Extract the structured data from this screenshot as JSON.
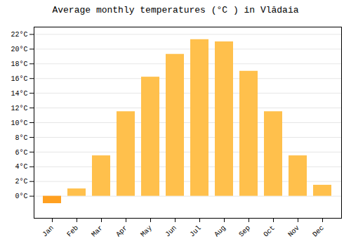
{
  "chart_data": {
    "type": "bar",
    "title": "Average monthly temperatures (°C ) in Vlădaia",
    "categories": [
      "Jan",
      "Feb",
      "Mar",
      "Apr",
      "May",
      "Jun",
      "Jul",
      "Aug",
      "Sep",
      "Oct",
      "Nov",
      "Dec"
    ],
    "values": [
      -1.0,
      1.0,
      5.5,
      11.5,
      16.2,
      19.3,
      21.3,
      21.0,
      17.0,
      11.5,
      5.5,
      1.5
    ],
    "colors": [
      "#FFA020",
      "#FFC04C",
      "#FFC04C",
      "#FFC04C",
      "#FFC04C",
      "#FFC04C",
      "#FFC04C",
      "#FFC04C",
      "#FFC04C",
      "#FFC04C",
      "#FFC04C",
      "#FFC04C"
    ],
    "ylim": [
      -3,
      23
    ],
    "yticks": [
      {
        "value": 0,
        "label": "0°C"
      },
      {
        "value": 2,
        "label": "2°C"
      },
      {
        "value": 4,
        "label": "4°C"
      },
      {
        "value": 6,
        "label": "6°C"
      },
      {
        "value": 8,
        "label": "8°C"
      },
      {
        "value": 10,
        "label": "10°C"
      },
      {
        "value": 12,
        "label": "12°C"
      },
      {
        "value": 14,
        "label": "14°C"
      },
      {
        "value": 16,
        "label": "16°C"
      },
      {
        "value": 18,
        "label": "18°C"
      },
      {
        "value": 20,
        "label": "20°C"
      },
      {
        "value": 22,
        "label": "22°C"
      }
    ],
    "grid": true
  }
}
